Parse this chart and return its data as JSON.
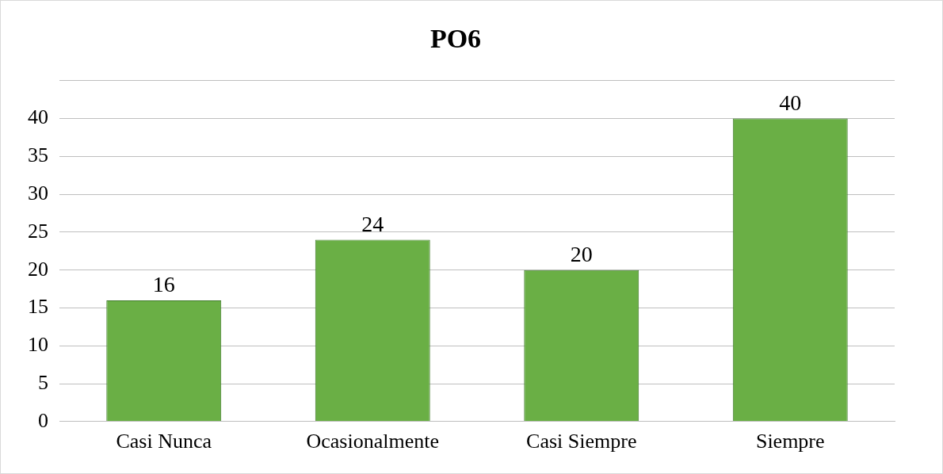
{
  "chart_data": {
    "type": "bar",
    "title": "PO6",
    "categories": [
      "Casi Nunca",
      "Ocasionalmente",
      "Casi Siempre",
      "Siempre"
    ],
    "values": [
      16,
      24,
      20,
      40
    ],
    "color": "#6aaf45",
    "ylim": [
      0,
      45
    ],
    "yticks": [
      0,
      5,
      10,
      15,
      20,
      25,
      30,
      35,
      40,
      {
        "value": 45,
        "label": null
      }
    ],
    "grid": "y",
    "data_labels": true,
    "legend": false
  }
}
